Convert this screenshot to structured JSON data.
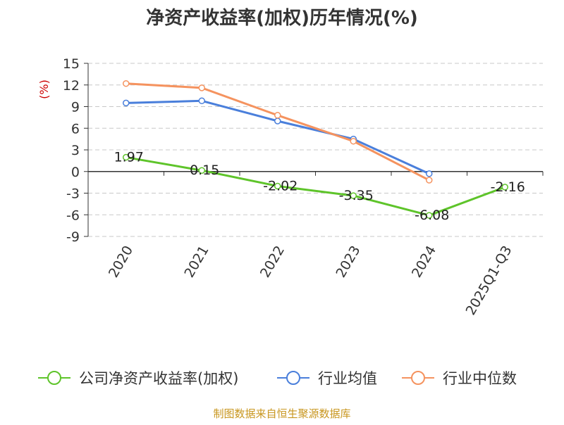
{
  "chart_data": {
    "type": "line",
    "title": "净资产收益率(加权)历年情况(%)",
    "ylabel": "(%)",
    "xlabel": "",
    "categories": [
      "2020",
      "2021",
      "2022",
      "2023",
      "2024",
      "2025Q1-Q3"
    ],
    "yticks": [
      15,
      12,
      9,
      6,
      3,
      0,
      -3,
      -6,
      -9
    ],
    "ylim": [
      -9,
      15
    ],
    "grid": true,
    "legend_position": "bottom",
    "series": [
      {
        "name": "公司净资产收益率(加权)",
        "color": "#5ec42a",
        "values": [
          1.97,
          0.15,
          -2.02,
          -3.35,
          -6.08,
          -2.16
        ],
        "labels": [
          "1.97",
          "0.15",
          "-2.02",
          "-3.35",
          "-6.08",
          "-2.16"
        ]
      },
      {
        "name": "行业均值",
        "color": "#4a7fdb",
        "values": [
          9.5,
          9.8,
          7.0,
          4.5,
          -0.3,
          null
        ]
      },
      {
        "name": "行业中位数",
        "color": "#f5935f",
        "values": [
          12.2,
          11.6,
          7.8,
          4.2,
          -1.2,
          null
        ]
      }
    ],
    "source": "制图数据来自恒生聚源数据库"
  }
}
